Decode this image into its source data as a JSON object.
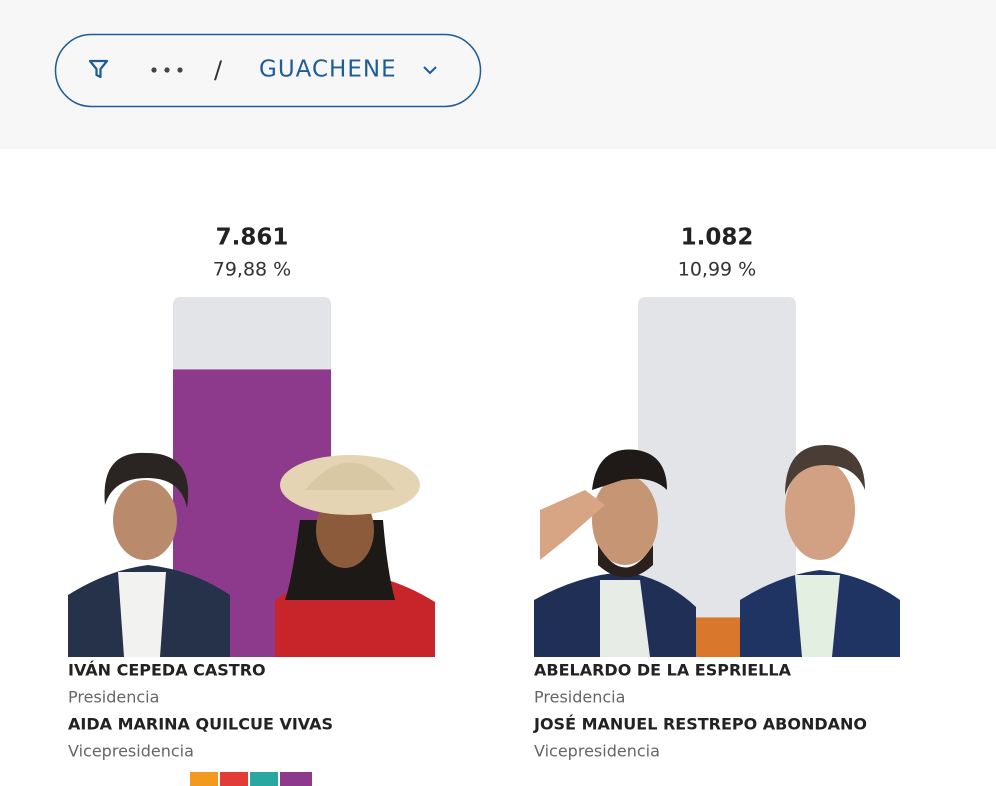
{
  "filter": {
    "location": "GUACHENE"
  },
  "results": {
    "ylim": [
      0,
      100
    ],
    "candidates": [
      {
        "votes": "7.861",
        "percent": 79.88,
        "percent_label": "79,88 %",
        "color": "#8e3a8c",
        "president": "IVÁN CEPEDA CASTRO",
        "president_role": "Presidencia",
        "vice": "AIDA MARINA QUILCUE VIVAS",
        "vice_role": "Vicepresidencia"
      },
      {
        "votes": "1.082",
        "percent": 10.99,
        "percent_label": "10,99 %",
        "color": "#d9782d",
        "president": "ABELARDO DE LA ESPRIELLA",
        "president_role": "Presidencia",
        "vice": "JOSÉ MANUEL RESTREPO ABONDANO",
        "vice_role": "Vicepresidencia"
      }
    ]
  }
}
